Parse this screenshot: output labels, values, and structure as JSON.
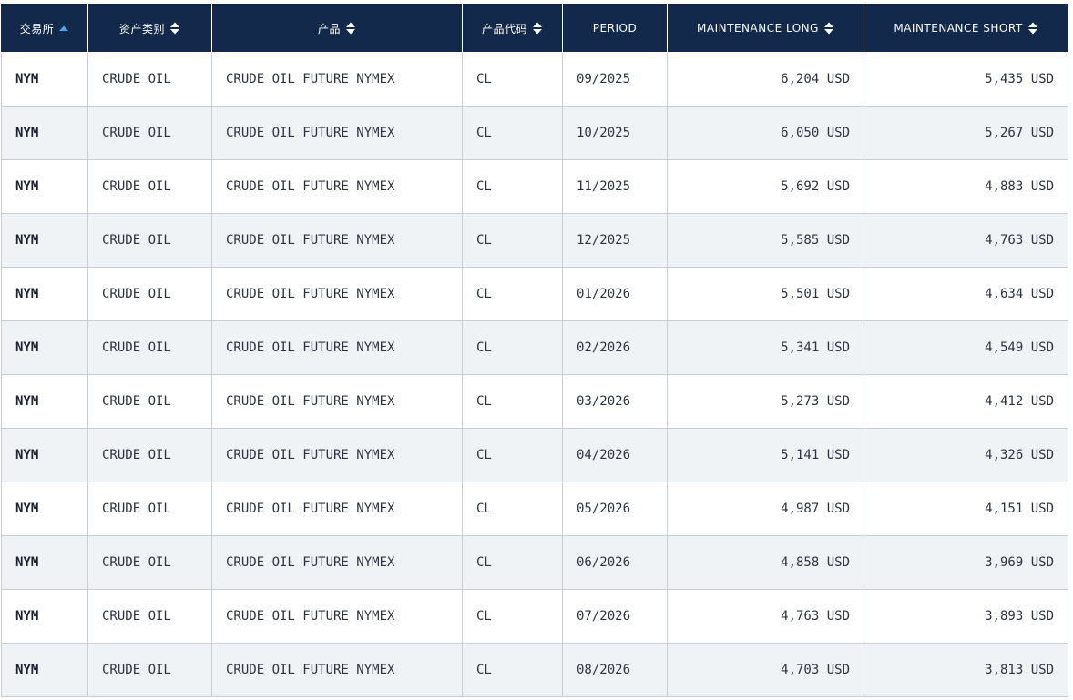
{
  "columns": {
    "exchange": "交易所",
    "asset_class": "资产类别",
    "product": "产品",
    "product_code": "产品代码",
    "period": "PERIOD",
    "maintenance_long": "MAINTENANCE LONG",
    "maintenance_short": "MAINTENANCE SHORT"
  },
  "sort": {
    "active_column": "exchange",
    "direction": "ascending",
    "active_color": "#4aa8e8",
    "inactive_color": "#ffffff"
  },
  "colors": {
    "header_bg": "#13294b",
    "row_alt_bg": "#f0f3f6",
    "border": "#c8cdd3"
  },
  "rows": [
    {
      "exchange": "NYM",
      "asset_class": "CRUDE OIL",
      "product": "CRUDE OIL FUTURE NYMEX",
      "product_code": "CL",
      "period": "09/2025",
      "maintenance_long": "6,204 USD",
      "maintenance_short": "5,435 USD"
    },
    {
      "exchange": "NYM",
      "asset_class": "CRUDE OIL",
      "product": "CRUDE OIL FUTURE NYMEX",
      "product_code": "CL",
      "period": "10/2025",
      "maintenance_long": "6,050 USD",
      "maintenance_short": "5,267 USD"
    },
    {
      "exchange": "NYM",
      "asset_class": "CRUDE OIL",
      "product": "CRUDE OIL FUTURE NYMEX",
      "product_code": "CL",
      "period": "11/2025",
      "maintenance_long": "5,692 USD",
      "maintenance_short": "4,883 USD"
    },
    {
      "exchange": "NYM",
      "asset_class": "CRUDE OIL",
      "product": "CRUDE OIL FUTURE NYMEX",
      "product_code": "CL",
      "period": "12/2025",
      "maintenance_long": "5,585 USD",
      "maintenance_short": "4,763 USD"
    },
    {
      "exchange": "NYM",
      "asset_class": "CRUDE OIL",
      "product": "CRUDE OIL FUTURE NYMEX",
      "product_code": "CL",
      "period": "01/2026",
      "maintenance_long": "5,501 USD",
      "maintenance_short": "4,634 USD"
    },
    {
      "exchange": "NYM",
      "asset_class": "CRUDE OIL",
      "product": "CRUDE OIL FUTURE NYMEX",
      "product_code": "CL",
      "period": "02/2026",
      "maintenance_long": "5,341 USD",
      "maintenance_short": "4,549 USD"
    },
    {
      "exchange": "NYM",
      "asset_class": "CRUDE OIL",
      "product": "CRUDE OIL FUTURE NYMEX",
      "product_code": "CL",
      "period": "03/2026",
      "maintenance_long": "5,273 USD",
      "maintenance_short": "4,412 USD"
    },
    {
      "exchange": "NYM",
      "asset_class": "CRUDE OIL",
      "product": "CRUDE OIL FUTURE NYMEX",
      "product_code": "CL",
      "period": "04/2026",
      "maintenance_long": "5,141 USD",
      "maintenance_short": "4,326 USD"
    },
    {
      "exchange": "NYM",
      "asset_class": "CRUDE OIL",
      "product": "CRUDE OIL FUTURE NYMEX",
      "product_code": "CL",
      "period": "05/2026",
      "maintenance_long": "4,987 USD",
      "maintenance_short": "4,151 USD"
    },
    {
      "exchange": "NYM",
      "asset_class": "CRUDE OIL",
      "product": "CRUDE OIL FUTURE NYMEX",
      "product_code": "CL",
      "period": "06/2026",
      "maintenance_long": "4,858 USD",
      "maintenance_short": "3,969 USD"
    },
    {
      "exchange": "NYM",
      "asset_class": "CRUDE OIL",
      "product": "CRUDE OIL FUTURE NYMEX",
      "product_code": "CL",
      "period": "07/2026",
      "maintenance_long": "4,763 USD",
      "maintenance_short": "3,893 USD"
    },
    {
      "exchange": "NYM",
      "asset_class": "CRUDE OIL",
      "product": "CRUDE OIL FUTURE NYMEX",
      "product_code": "CL",
      "period": "08/2026",
      "maintenance_long": "4,703 USD",
      "maintenance_short": "3,813 USD"
    }
  ]
}
